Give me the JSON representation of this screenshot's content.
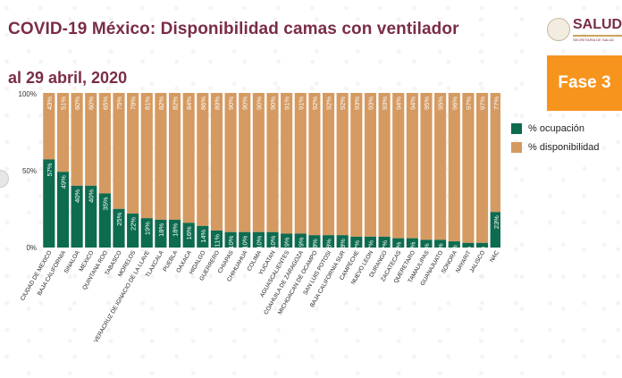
{
  "title": "COVID-19 México: Disponibilidad camas con ventilador",
  "subtitle": "al 29 abril, 2020",
  "logo": {
    "text": "SALUD",
    "subtext": "SECRETARÍA DE SALUD"
  },
  "badge": {
    "label": "Fase 3",
    "color": "#f7941d"
  },
  "colors": {
    "ocupacion": "#0d6b4f",
    "disponibilidad": "#d59a61",
    "title": "#7a2d46"
  },
  "chart_data": {
    "type": "bar",
    "stacked": true,
    "ylim": [
      0,
      100
    ],
    "yticks": [
      "0%",
      "50%",
      "100%"
    ],
    "legend_position": "right",
    "legend": [
      "% ocupación",
      "% disponibilidad"
    ],
    "categories": [
      "CIUDAD DE MEXICO",
      "BAJA CALIFORNIA",
      "SINALOA",
      "MEXICO",
      "QUINTANA ROO",
      "TABASCO",
      "MORELOS",
      "VERACRUZ DE IGNACIO DE LA LLAVE",
      "TLAXCALA",
      "PUEBLA",
      "OAXACA",
      "HIDALGO",
      "GUERRERO",
      "CHIAPAS",
      "CHIHUAHUA",
      "COLIMA",
      "YUCATAN",
      "AGUASCALIENTES",
      "COAHUILA DE ZARAGOZA",
      "MICHOACAN DE OCAMPO",
      "SAN LUIS POTOSI",
      "BAJA CALIFORNIA SUR",
      "CAMPECHE",
      "NUEVO LEON",
      "DURANGO",
      "ZACATECAS",
      "QUERETARO",
      "TAMAULIPAS",
      "GUANAJUATO",
      "SONORA",
      "NAYARIT",
      "JALISCO",
      "NAC"
    ],
    "series": [
      {
        "name": "% ocupación",
        "values": [
          57,
          49,
          40,
          40,
          35,
          25,
          22,
          19,
          18,
          18,
          16,
          14,
          11,
          10,
          10,
          10,
          10,
          9,
          9,
          8,
          8,
          8,
          7,
          7,
          7,
          6,
          6,
          5,
          5,
          4,
          3,
          3,
          23
        ]
      },
      {
        "name": "% disponibilidad",
        "values": [
          43,
          51,
          60,
          60,
          65,
          75,
          78,
          81,
          82,
          82,
          84,
          86,
          89,
          90,
          90,
          90,
          90,
          91,
          91,
          92,
          92,
          92,
          93,
          93,
          93,
          94,
          94,
          95,
          95,
          96,
          97,
          97,
          77
        ]
      }
    ],
    "occ_labels": [
      "57%",
      "49%",
      "40%",
      "40%",
      "35%",
      "25%",
      "22%",
      "19%",
      "18%",
      "18%",
      "16%",
      "14%",
      "11%",
      "10%",
      "10%",
      "10%",
      "10%",
      "9%",
      "9%",
      "8%",
      "8%",
      "8%",
      "7%",
      "7%",
      "7%",
      "6%",
      "6%",
      "5%",
      "5%",
      "4%",
      "3%",
      "3%",
      "23%"
    ],
    "avail_labels": [
      "43%",
      "51%",
      "60%",
      "60%",
      "65%",
      "75%",
      "78%",
      "81%",
      "82%",
      "82%",
      "84%",
      "86%",
      "89%",
      "90%",
      "90%",
      "90%",
      "90%",
      "91%",
      "91%",
      "92%",
      "92%",
      "92%",
      "93%",
      "93%",
      "93%",
      "94%",
      "94%",
      "95%",
      "95%",
      "96%",
      "97%",
      "97%",
      "77%"
    ]
  }
}
